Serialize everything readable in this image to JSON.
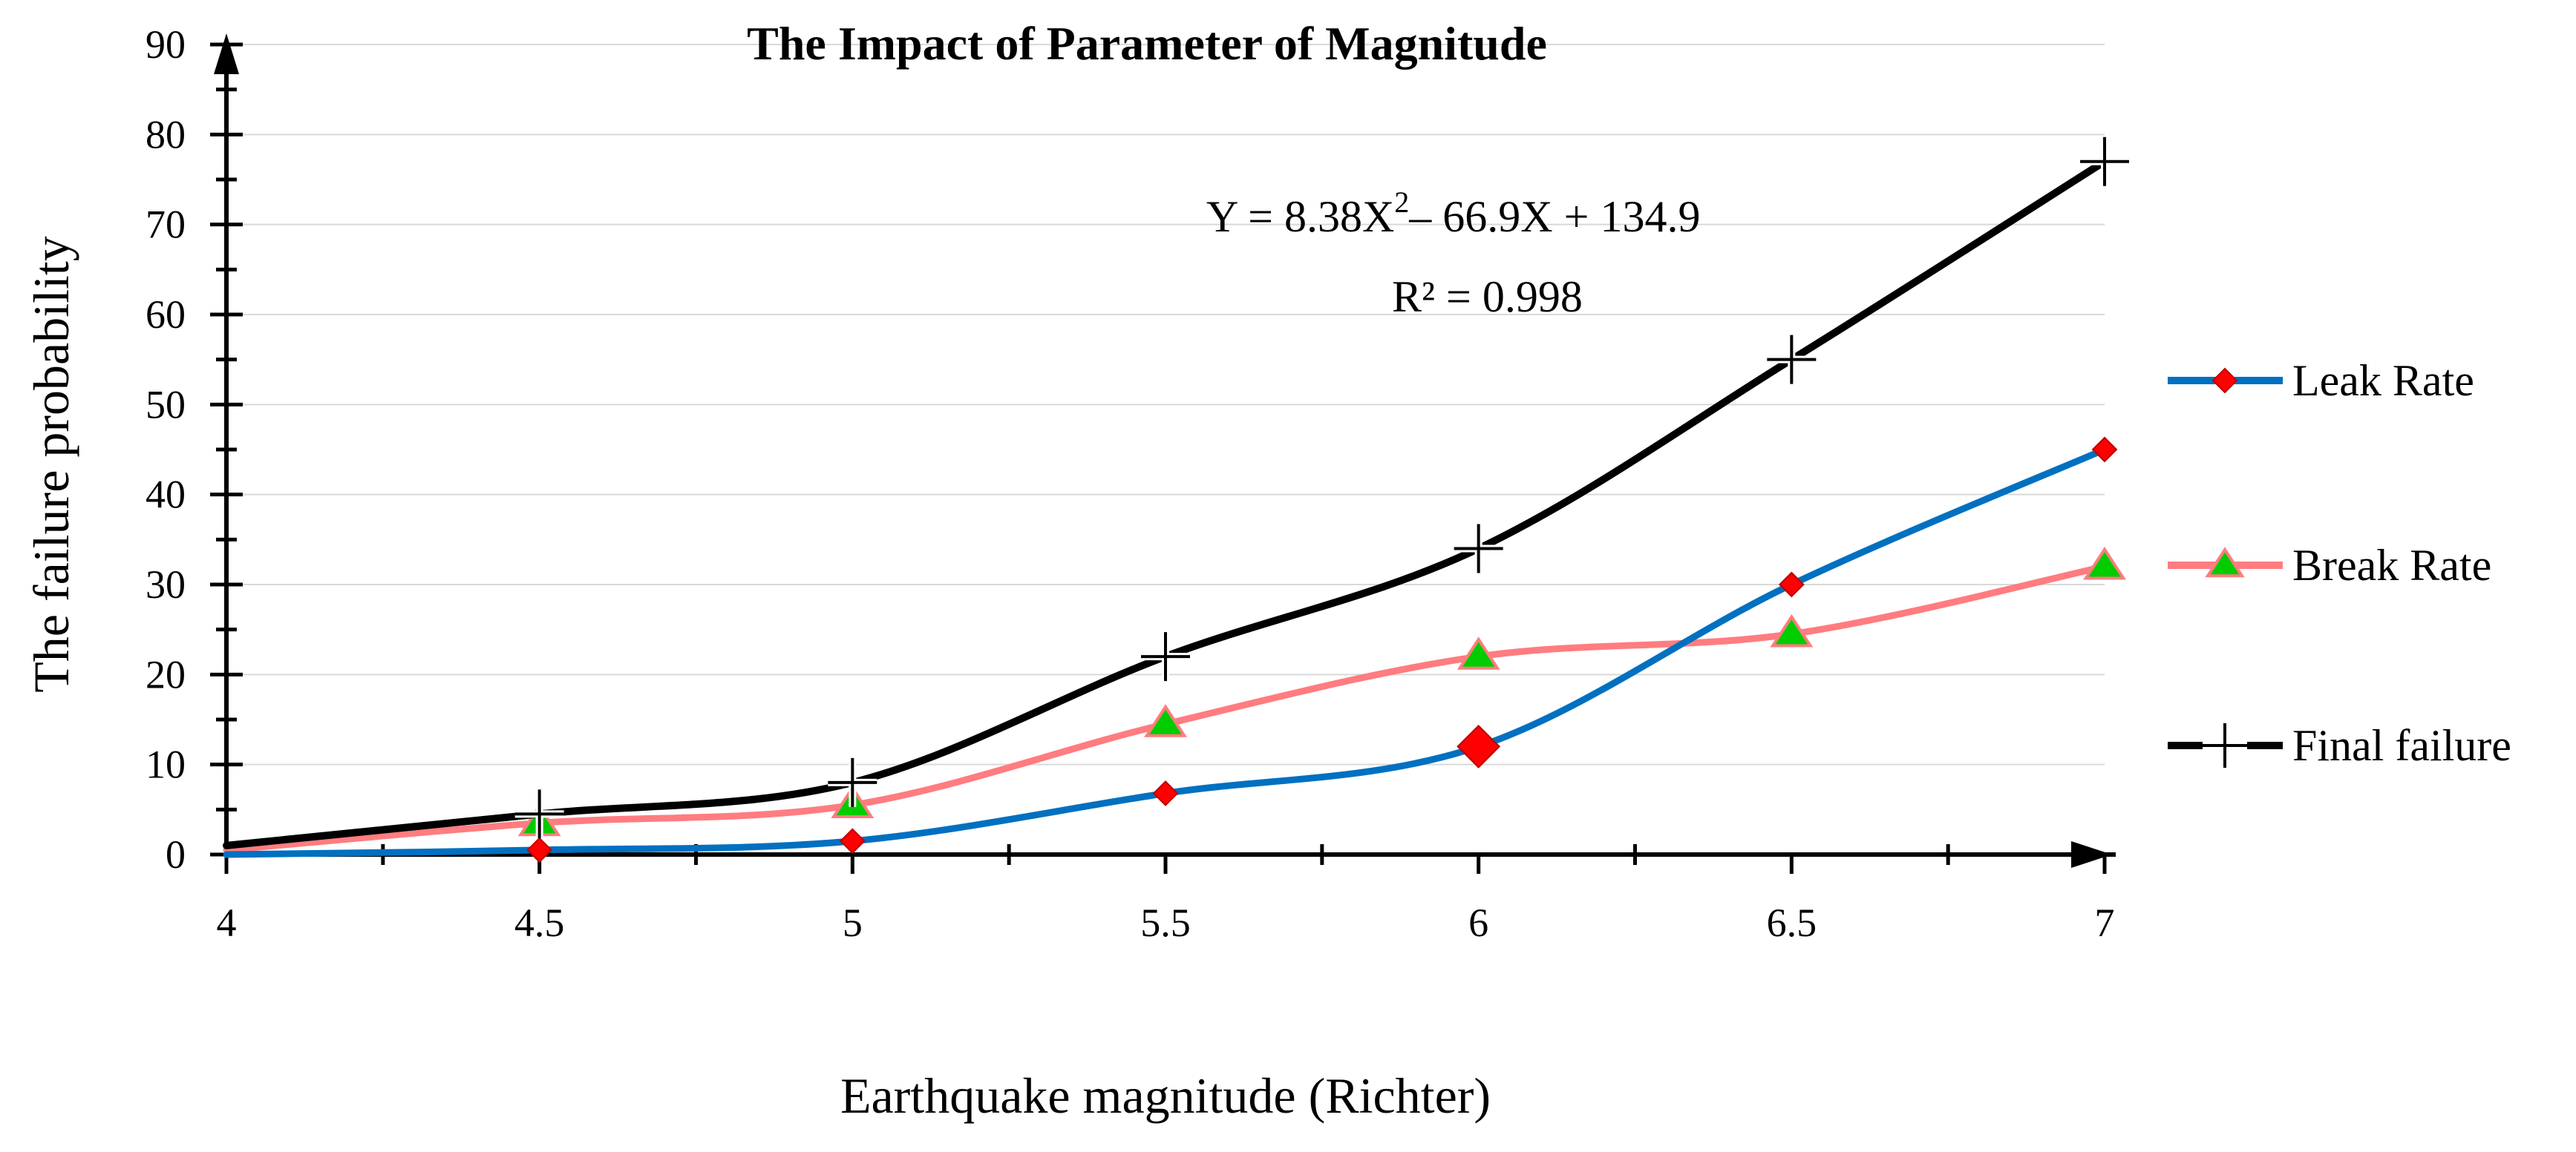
{
  "chart_data": {
    "type": "line",
    "title": "The Impact of Parameter of Magnitude",
    "xlabel": "Earthquake magnitude (Richter)",
    "ylabel": "The failure probability",
    "x": [
      4,
      4.5,
      5,
      5.5,
      6,
      6.5,
      7
    ],
    "x_tick_labels": [
      "4",
      "4.5",
      "5",
      "5.5",
      "6",
      "6.5",
      "7"
    ],
    "xlim": [
      4,
      7
    ],
    "ylim": [
      0,
      90
    ],
    "y_ticks": [
      0,
      10,
      20,
      30,
      40,
      50,
      60,
      70,
      80,
      90
    ],
    "y_tick_labels": [
      "0",
      "10",
      "20",
      "30",
      "40",
      "50",
      "60",
      "70",
      "80",
      "90"
    ],
    "grid": true,
    "legend_position": "right",
    "series": [
      {
        "name": "Leak Rate",
        "color": "#0070C0",
        "marker": "diamond",
        "marker_color": "#FF0000",
        "values": [
          0,
          0.5,
          1.5,
          6.8,
          12,
          30,
          45
        ]
      },
      {
        "name": "Break Rate",
        "color": "#FF7C80",
        "marker": "triangle",
        "marker_color": "#00CC00",
        "values": [
          0.5,
          3.5,
          5.5,
          14.5,
          22,
          24.5,
          32
        ]
      },
      {
        "name": "Final failure",
        "color": "#000000",
        "marker": "plus",
        "marker_color": "#000000",
        "values": [
          1,
          4.5,
          8,
          22,
          34,
          55,
          77
        ]
      }
    ],
    "annotation": {
      "equation_prefix": "Y = 8.38X",
      "equation_exponent": "2",
      "equation_suffix": "– 66.9X + 134.9",
      "r_squared": "R² = 0.998"
    }
  }
}
